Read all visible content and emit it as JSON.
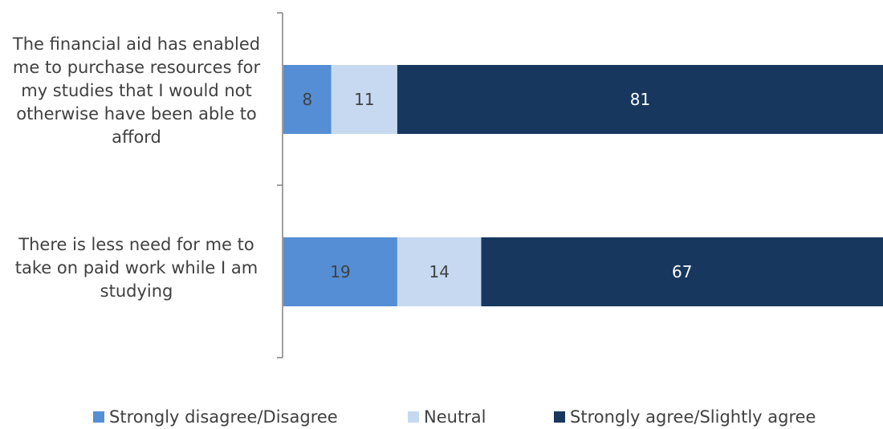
{
  "chart_data": {
    "type": "bar",
    "orientation": "horizontal",
    "stacked": true,
    "categories": [
      "The financial aid has enabled me to purchase resources for my studies that I would not otherwise have been able to afford",
      "There is less need for me to take on paid work while I am studying"
    ],
    "series": [
      {
        "name": "Strongly disagree/Disagree",
        "values": [
          8,
          19
        ],
        "color": "#558ED5"
      },
      {
        "name": "Neutral",
        "values": [
          11,
          14
        ],
        "color": "#C6D9F1"
      },
      {
        "name": "Strongly agree/Slightly agree",
        "values": [
          81,
          67
        ],
        "color": "#17375E"
      }
    ],
    "xlim": [
      0,
      100
    ],
    "grid": false,
    "legend": "bottom",
    "label_colors": [
      "#404040",
      "#404040",
      "#ffffff"
    ]
  }
}
